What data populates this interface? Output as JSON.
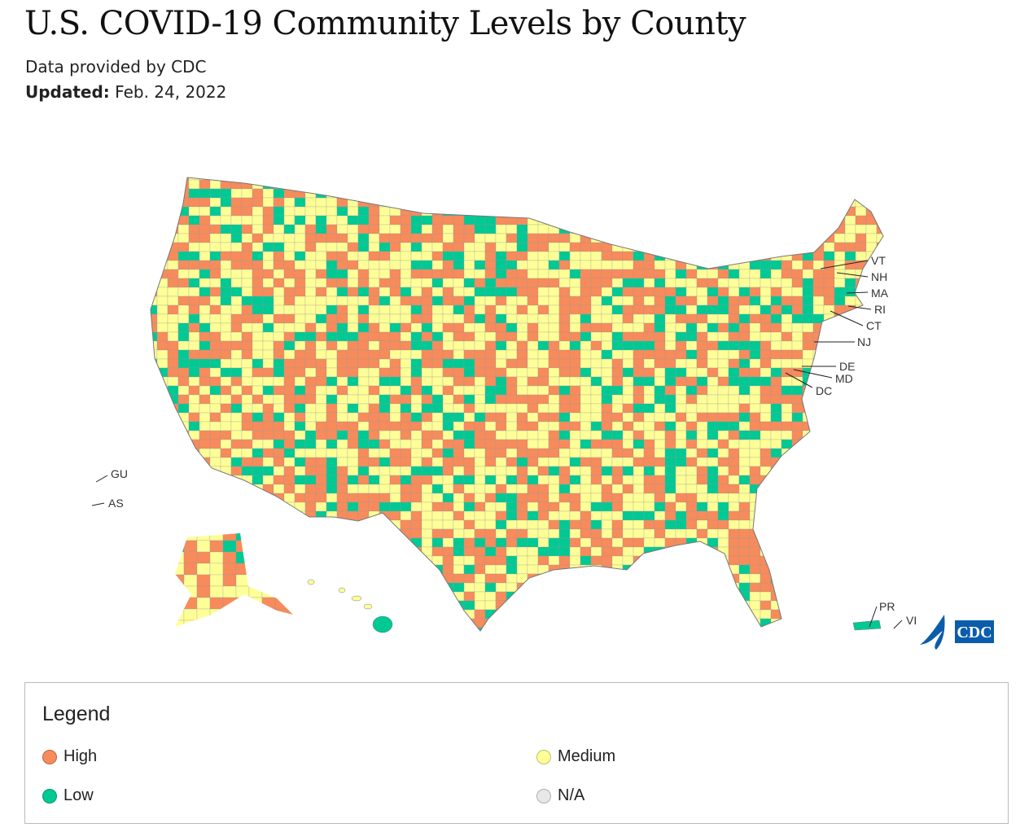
{
  "header": {
    "title": "U.S. COVID-19 Community Levels by County",
    "source": "Data provided by CDC",
    "updated_label": "Updated:",
    "updated_value": "Feb. 24, 2022"
  },
  "map": {
    "state_labels": [
      "VT",
      "NH",
      "MA",
      "RI",
      "CT",
      "NJ",
      "DE",
      "MD",
      "DC"
    ],
    "territory_labels": {
      "gu": "GU",
      "as": "AS",
      "pr": "PR",
      "vi": "VI"
    },
    "logo_text": "CDC",
    "level_mix": {
      "High": 0.4,
      "Medium": 0.42,
      "Low": 0.18
    }
  },
  "legend": {
    "title": "Legend",
    "items": [
      {
        "label": "High",
        "color": "#f78b5b"
      },
      {
        "label": "Medium",
        "color": "#ffff98"
      },
      {
        "label": "Low",
        "color": "#00c994"
      },
      {
        "label": "N/A",
        "color": "#e8e8e8"
      }
    ]
  },
  "colors": {
    "border": "#777777",
    "logo": "#0b5cab"
  }
}
